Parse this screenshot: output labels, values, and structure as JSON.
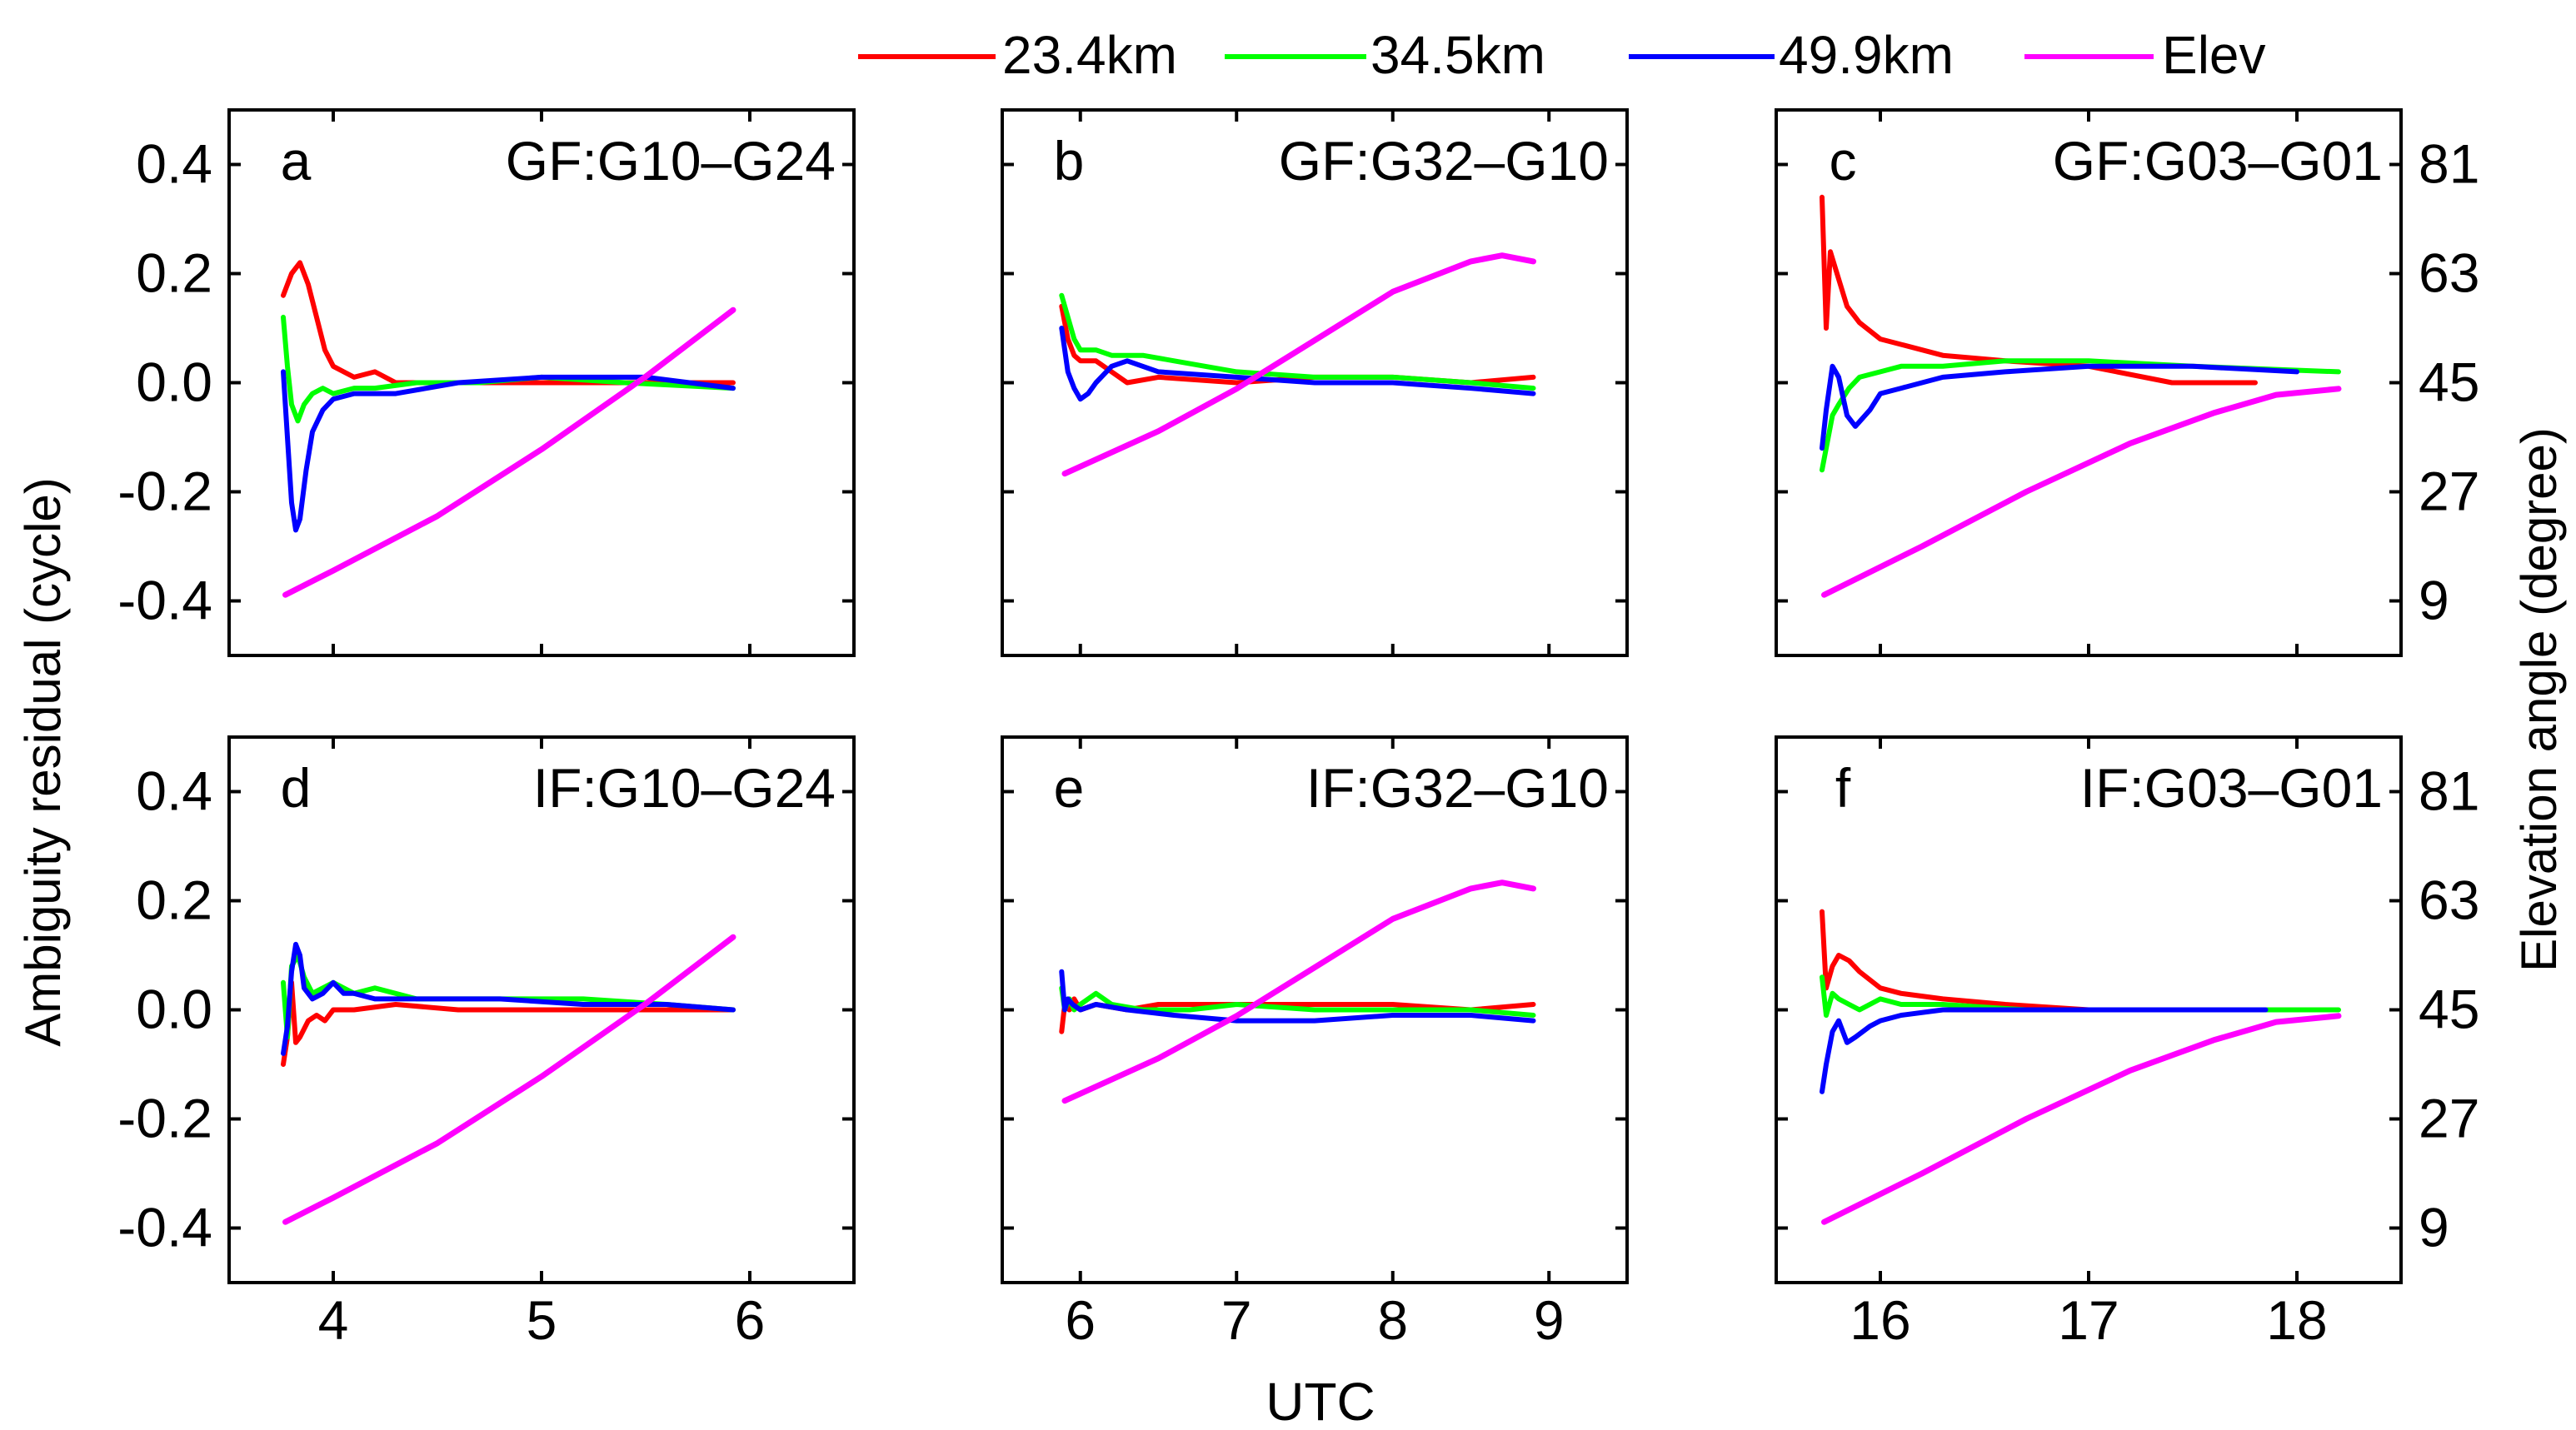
{
  "figure": {
    "legend": [
      {
        "label": "23.4km",
        "color": "#ff0000"
      },
      {
        "label": "34.5km",
        "color": "#00ff00"
      },
      {
        "label": "49.9km",
        "color": "#0000ff"
      },
      {
        "label": "Elev",
        "color": "#ff00ff"
      }
    ],
    "y_left_label": "Ambiguity residual (cycle)",
    "y_right_label": "Elevation angle (degree)",
    "x_label": "UTC",
    "left_ticks": [
      "0.4",
      "0.2",
      "0.0",
      "-0.2",
      "-0.4"
    ],
    "right_ticks": [
      "81",
      "63",
      "45",
      "27",
      "9"
    ]
  },
  "chart_data": [
    {
      "type": "line",
      "letter": "a",
      "title": "GF:G10–G24",
      "xlim": [
        3.5,
        6.5
      ],
      "ylim": [
        -0.5,
        0.5
      ],
      "y2lim": [
        0,
        90
      ],
      "xticks": [
        4,
        5,
        6
      ],
      "show_xticks": false,
      "series": [
        {
          "name": "23.4km",
          "color": "#ff0000",
          "x": [
            3.76,
            3.8,
            3.84,
            3.88,
            3.92,
            3.96,
            4.0,
            4.05,
            4.1,
            4.2,
            4.3,
            4.5,
            4.8,
            5.2,
            5.6,
            5.92
          ],
          "y": [
            0.16,
            0.2,
            0.22,
            0.18,
            0.12,
            0.06,
            0.03,
            0.02,
            0.01,
            0.02,
            0.0,
            0.0,
            0.0,
            0.0,
            0.0,
            0.0
          ]
        },
        {
          "name": "34.5km",
          "color": "#00ff00",
          "x": [
            3.76,
            3.78,
            3.8,
            3.83,
            3.86,
            3.9,
            3.95,
            4.0,
            4.1,
            4.2,
            4.4,
            4.7,
            5.0,
            5.4,
            5.92
          ],
          "y": [
            0.12,
            0.03,
            -0.04,
            -0.07,
            -0.04,
            -0.02,
            -0.01,
            -0.02,
            -0.01,
            -0.01,
            0.0,
            0.0,
            0.01,
            0.0,
            -0.01
          ]
        },
        {
          "name": "49.9km",
          "color": "#0000ff",
          "x": [
            3.76,
            3.78,
            3.8,
            3.82,
            3.84,
            3.87,
            3.9,
            3.95,
            4.0,
            4.1,
            4.3,
            4.6,
            5.0,
            5.5,
            5.92
          ],
          "y": [
            0.02,
            -0.1,
            -0.22,
            -0.27,
            -0.25,
            -0.16,
            -0.09,
            -0.05,
            -0.03,
            -0.02,
            -0.02,
            0.0,
            0.01,
            0.01,
            -0.01
          ]
        },
        {
          "name": "Elev",
          "color": "#ff00ff",
          "axis": "right",
          "x": [
            3.77,
            4.0,
            4.5,
            5.0,
            5.5,
            5.92
          ],
          "y": [
            10,
            14,
            23,
            34,
            46,
            57
          ]
        }
      ]
    },
    {
      "type": "line",
      "letter": "b",
      "title": "GF:G32–G10",
      "xlim": [
        5.5,
        9.5
      ],
      "ylim": [
        -0.5,
        0.5
      ],
      "y2lim": [
        0,
        90
      ],
      "xticks": [
        6,
        7,
        8,
        9
      ],
      "show_xticks": false,
      "series": [
        {
          "name": "23.4km",
          "color": "#ff0000",
          "x": [
            5.88,
            5.92,
            5.96,
            6.0,
            6.1,
            6.2,
            6.3,
            6.5,
            7.0,
            7.5,
            8.0,
            8.5,
            8.9
          ],
          "y": [
            0.14,
            0.08,
            0.05,
            0.04,
            0.04,
            0.02,
            0.0,
            0.01,
            0.0,
            0.01,
            0.01,
            0.0,
            0.01
          ]
        },
        {
          "name": "34.5km",
          "color": "#00ff00",
          "x": [
            5.88,
            5.92,
            5.96,
            6.0,
            6.1,
            6.2,
            6.4,
            6.6,
            7.0,
            7.5,
            8.0,
            8.5,
            8.9
          ],
          "y": [
            0.16,
            0.12,
            0.08,
            0.06,
            0.06,
            0.05,
            0.05,
            0.04,
            0.02,
            0.01,
            0.01,
            0.0,
            -0.01
          ]
        },
        {
          "name": "49.9km",
          "color": "#0000ff",
          "x": [
            5.88,
            5.92,
            5.96,
            6.0,
            6.05,
            6.1,
            6.2,
            6.3,
            6.5,
            7.0,
            7.5,
            8.0,
            8.5,
            8.9
          ],
          "y": [
            0.1,
            0.02,
            -0.01,
            -0.03,
            -0.02,
            0.0,
            0.03,
            0.04,
            0.02,
            0.01,
            0.0,
            0.0,
            -0.01,
            -0.02
          ]
        },
        {
          "name": "Elev",
          "color": "#ff00ff",
          "axis": "right",
          "x": [
            5.9,
            6.5,
            7.0,
            7.5,
            8.0,
            8.5,
            8.7,
            8.9
          ],
          "y": [
            30,
            37,
            44,
            52,
            60,
            65,
            66,
            65
          ]
        }
      ]
    },
    {
      "type": "line",
      "letter": "c",
      "title": "GF:G03–G01",
      "xlim": [
        15.5,
        18.5
      ],
      "ylim": [
        -0.5,
        0.5
      ],
      "y2lim": [
        0,
        90
      ],
      "xticks": [
        16,
        17,
        18
      ],
      "show_xticks": false,
      "series": [
        {
          "name": "23.4km",
          "color": "#ff0000",
          "x": [
            15.72,
            15.74,
            15.76,
            15.8,
            15.84,
            15.9,
            16.0,
            16.1,
            16.3,
            16.6,
            17.0,
            17.4,
            17.8
          ],
          "y": [
            0.34,
            0.1,
            0.24,
            0.19,
            0.14,
            0.11,
            0.08,
            0.07,
            0.05,
            0.04,
            0.03,
            0.0,
            0.0
          ]
        },
        {
          "name": "34.5km",
          "color": "#00ff00",
          "x": [
            15.72,
            15.74,
            15.77,
            15.8,
            15.85,
            15.9,
            16.0,
            16.1,
            16.3,
            16.6,
            17.0,
            17.5,
            18.2
          ],
          "y": [
            -0.16,
            -0.12,
            -0.06,
            -0.04,
            -0.01,
            0.01,
            0.02,
            0.03,
            0.03,
            0.04,
            0.04,
            0.03,
            0.02
          ]
        },
        {
          "name": "49.9km",
          "color": "#0000ff",
          "x": [
            15.72,
            15.74,
            15.77,
            15.8,
            15.84,
            15.88,
            15.95,
            16.0,
            16.1,
            16.3,
            16.6,
            17.0,
            17.5,
            18.0
          ],
          "y": [
            -0.12,
            -0.05,
            0.03,
            0.01,
            -0.06,
            -0.08,
            -0.05,
            -0.02,
            -0.01,
            0.01,
            0.02,
            0.03,
            0.03,
            0.02
          ]
        },
        {
          "name": "Elev",
          "color": "#ff00ff",
          "axis": "right",
          "x": [
            15.73,
            16.2,
            16.7,
            17.2,
            17.6,
            17.9,
            18.2
          ],
          "y": [
            10,
            18,
            27,
            35,
            40,
            43,
            44
          ]
        }
      ]
    },
    {
      "type": "line",
      "letter": "d",
      "title": "IF:G10–G24",
      "xlim": [
        3.5,
        6.5
      ],
      "ylim": [
        -0.5,
        0.5
      ],
      "y2lim": [
        0,
        90
      ],
      "xticks": [
        4,
        5,
        6
      ],
      "show_xticks": true,
      "series": [
        {
          "name": "23.4km",
          "color": "#ff0000",
          "x": [
            3.76,
            3.78,
            3.8,
            3.82,
            3.84,
            3.88,
            3.92,
            3.96,
            4.0,
            4.1,
            4.3,
            4.6,
            5.0,
            5.5,
            5.92
          ],
          "y": [
            -0.1,
            -0.05,
            0.05,
            -0.06,
            -0.05,
            -0.02,
            -0.01,
            -0.02,
            0.0,
            0.0,
            0.01,
            0.0,
            0.0,
            0.0,
            0.0
          ]
        },
        {
          "name": "34.5km",
          "color": "#00ff00",
          "x": [
            3.76,
            3.78,
            3.8,
            3.83,
            3.86,
            3.9,
            3.95,
            4.0,
            4.1,
            4.2,
            4.4,
            4.8,
            5.2,
            5.6,
            5.92
          ],
          "y": [
            0.05,
            -0.05,
            0.08,
            0.1,
            0.06,
            0.03,
            0.04,
            0.05,
            0.03,
            0.04,
            0.02,
            0.02,
            0.02,
            0.01,
            0.0
          ]
        },
        {
          "name": "49.9km",
          "color": "#0000ff",
          "x": [
            3.76,
            3.78,
            3.8,
            3.82,
            3.84,
            3.86,
            3.9,
            3.95,
            4.0,
            4.05,
            4.1,
            4.2,
            4.4,
            4.8,
            5.2,
            5.6,
            5.92
          ],
          "y": [
            -0.08,
            -0.03,
            0.07,
            0.12,
            0.1,
            0.04,
            0.02,
            0.03,
            0.05,
            0.03,
            0.03,
            0.02,
            0.02,
            0.02,
            0.01,
            0.01,
            0.0
          ]
        },
        {
          "name": "Elev",
          "color": "#ff00ff",
          "axis": "right",
          "x": [
            3.77,
            4.0,
            4.5,
            5.0,
            5.5,
            5.92
          ],
          "y": [
            10,
            14,
            23,
            34,
            46,
            57
          ]
        }
      ]
    },
    {
      "type": "line",
      "letter": "e",
      "title": "IF:G32–G10",
      "xlim": [
        5.5,
        9.5
      ],
      "ylim": [
        -0.5,
        0.5
      ],
      "y2lim": [
        0,
        90
      ],
      "xticks": [
        6,
        7,
        8,
        9
      ],
      "show_xticks": true,
      "series": [
        {
          "name": "23.4km",
          "color": "#ff0000",
          "x": [
            5.88,
            5.9,
            5.93,
            5.96,
            6.0,
            6.1,
            6.3,
            6.5,
            7.0,
            7.5,
            8.0,
            8.5,
            8.9
          ],
          "y": [
            -0.04,
            0.01,
            0.0,
            0.02,
            0.0,
            0.01,
            0.0,
            0.01,
            0.01,
            0.01,
            0.01,
            0.0,
            0.01
          ]
        },
        {
          "name": "34.5km",
          "color": "#00ff00",
          "x": [
            5.88,
            5.9,
            5.93,
            5.96,
            6.0,
            6.1,
            6.2,
            6.4,
            6.7,
            7.0,
            7.5,
            8.0,
            8.5,
            8.9
          ],
          "y": [
            0.04,
            0.0,
            0.02,
            0.0,
            0.01,
            0.03,
            0.01,
            0.0,
            0.0,
            0.01,
            0.0,
            0.0,
            0.0,
            -0.01
          ]
        },
        {
          "name": "49.9km",
          "color": "#0000ff",
          "x": [
            5.88,
            5.9,
            5.92,
            5.95,
            6.0,
            6.1,
            6.3,
            6.6,
            7.0,
            7.5,
            8.0,
            8.5,
            8.9
          ],
          "y": [
            0.07,
            0.0,
            0.02,
            0.01,
            0.0,
            0.01,
            0.0,
            -0.01,
            -0.02,
            -0.02,
            -0.01,
            -0.01,
            -0.02
          ]
        },
        {
          "name": "Elev",
          "color": "#ff00ff",
          "axis": "right",
          "x": [
            5.9,
            6.5,
            7.0,
            7.5,
            8.0,
            8.5,
            8.7,
            8.9
          ],
          "y": [
            30,
            37,
            44,
            52,
            60,
            65,
            66,
            65
          ]
        }
      ]
    },
    {
      "type": "line",
      "letter": "f",
      "title": "IF:G03–G01",
      "xlim": [
        15.5,
        18.5
      ],
      "ylim": [
        -0.5,
        0.5
      ],
      "y2lim": [
        0,
        90
      ],
      "xticks": [
        16,
        17,
        18
      ],
      "show_xticks": true,
      "series": [
        {
          "name": "23.4km",
          "color": "#ff0000",
          "x": [
            15.72,
            15.74,
            15.77,
            15.8,
            15.85,
            15.9,
            16.0,
            16.1,
            16.3,
            16.6,
            17.0,
            17.5,
            18.0
          ],
          "y": [
            0.18,
            0.04,
            0.08,
            0.1,
            0.09,
            0.07,
            0.04,
            0.03,
            0.02,
            0.01,
            0.0,
            0.0,
            0.0
          ]
        },
        {
          "name": "34.5km",
          "color": "#00ff00",
          "x": [
            15.72,
            15.74,
            15.77,
            15.8,
            15.85,
            15.9,
            16.0,
            16.1,
            16.3,
            16.7,
            17.2,
            17.8,
            18.2
          ],
          "y": [
            0.06,
            -0.01,
            0.03,
            0.02,
            0.01,
            0.0,
            0.02,
            0.01,
            0.01,
            0.0,
            0.0,
            0.0,
            0.0
          ]
        },
        {
          "name": "49.9km",
          "color": "#0000ff",
          "x": [
            15.72,
            15.74,
            15.77,
            15.8,
            15.84,
            15.88,
            15.95,
            16.0,
            16.1,
            16.3,
            16.6,
            17.0,
            17.5,
            17.85
          ],
          "y": [
            -0.15,
            -0.1,
            -0.04,
            -0.02,
            -0.06,
            -0.05,
            -0.03,
            -0.02,
            -0.01,
            0.0,
            0.0,
            0.0,
            0.0,
            0.0
          ]
        },
        {
          "name": "Elev",
          "color": "#ff00ff",
          "axis": "right",
          "x": [
            15.73,
            16.2,
            16.7,
            17.2,
            17.6,
            17.9,
            18.2
          ],
          "y": [
            10,
            18,
            27,
            35,
            40,
            43,
            44
          ]
        }
      ]
    }
  ]
}
